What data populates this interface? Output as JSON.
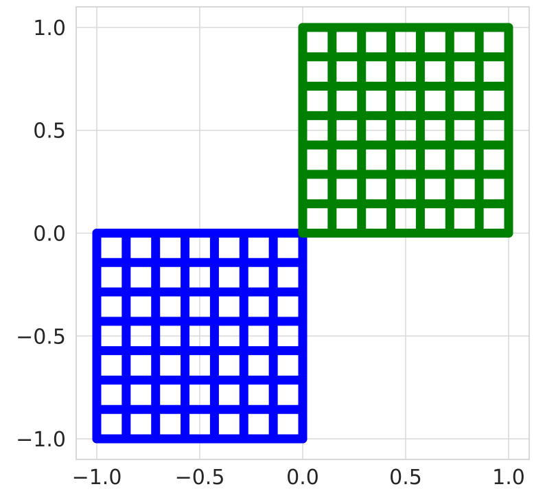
{
  "chart_data": {
    "type": "grid-squares",
    "xlim": [
      -1.1,
      1.1
    ],
    "ylim": [
      -1.1,
      1.1
    ],
    "grid": true,
    "x_ticks": [
      {
        "value": -1.0,
        "label": "−1.0"
      },
      {
        "value": -0.5,
        "label": "−0.5"
      },
      {
        "value": 0.0,
        "label": "0.0"
      },
      {
        "value": 0.5,
        "label": "0.5"
      },
      {
        "value": 1.0,
        "label": "1.0"
      }
    ],
    "y_ticks": [
      {
        "value": 1.0,
        "label": "1.0"
      },
      {
        "value": 0.5,
        "label": "0.5"
      },
      {
        "value": 0.0,
        "label": "0.0"
      },
      {
        "value": -0.5,
        "label": "−0.5"
      },
      {
        "value": -1.0,
        "label": "−1.0"
      }
    ],
    "series": [
      {
        "color": "#0000ff",
        "x_range": [
          -1.0,
          0.0
        ],
        "y_range": [
          -1.0,
          0.0
        ],
        "divisions": 7
      },
      {
        "color": "#008000",
        "x_range": [
          0.0,
          1.0
        ],
        "y_range": [
          0.0,
          1.0
        ],
        "divisions": 7
      }
    ]
  }
}
